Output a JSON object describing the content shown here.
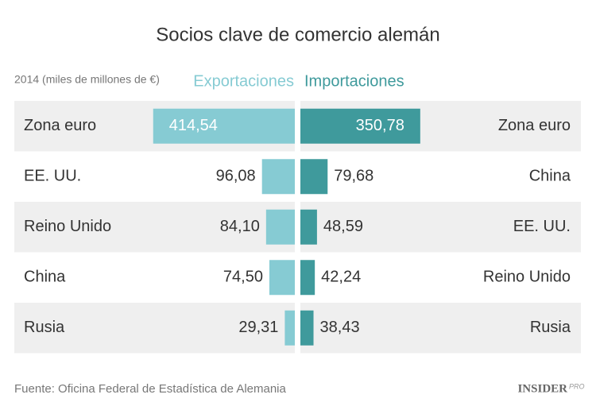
{
  "chart_data": {
    "type": "butterfly",
    "title": "Socios clave de comercio alemán",
    "subtitle": "2014 (miles de millones de €)",
    "series": [
      {
        "name": "Exportaciones",
        "color": "#86cbd3",
        "categories": [
          "Zona euro",
          "EE. UU.",
          "Reino Unido",
          "China",
          "Rusia"
        ],
        "values": [
          414.54,
          96.08,
          84.1,
          74.5,
          29.31
        ],
        "value_labels": [
          "414,54",
          "96,08",
          "84,10",
          "74,50",
          "29,31"
        ]
      },
      {
        "name": "Importaciones",
        "color": "#3f9a9c",
        "categories": [
          "Zona euro",
          "China",
          "EE. UU.",
          "Reino Unido",
          "Rusia"
        ],
        "values": [
          350.78,
          79.68,
          48.59,
          42.24,
          38.43
        ],
        "value_labels": [
          "350,78",
          "79,68",
          "48,59",
          "42,24",
          "38,43"
        ]
      }
    ],
    "source": "Fuente: Oficina Federal de Estadística de Alemania",
    "logo": {
      "main": "INSIDER",
      "sub": "PRO"
    }
  }
}
